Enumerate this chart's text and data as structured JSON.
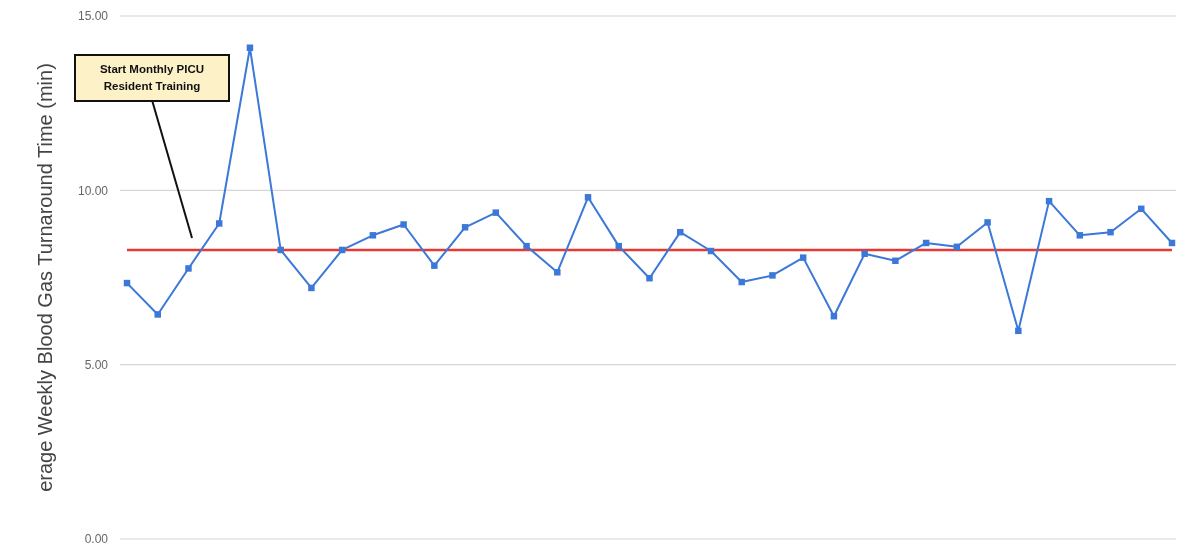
{
  "chart_data": {
    "type": "line",
    "ylabel": "erage Weekly Blood Gas Turnaround Time (min)",
    "categories": [
      null,
      null,
      null,
      null,
      null,
      null,
      null,
      null,
      null,
      null,
      null,
      null,
      null,
      null,
      null,
      null,
      null,
      null,
      null,
      null,
      null,
      null,
      null,
      null,
      null,
      null,
      null,
      null,
      null,
      null,
      null,
      null,
      null,
      null,
      null
    ],
    "series": [
      {
        "color": "#3c78d8",
        "values": [
          7.34,
          6.44,
          7.76,
          9.05,
          14.09,
          8.29,
          7.2,
          8.29,
          8.71,
          9.02,
          7.84,
          8.94,
          9.36,
          8.4,
          7.65,
          9.8,
          8.4,
          7.48,
          8.8,
          8.26,
          7.37,
          7.56,
          8.07,
          6.39,
          8.18,
          7.98,
          8.49,
          8.38,
          9.08,
          5.97,
          9.69,
          8.71,
          8.8,
          9.47,
          8.49
        ]
      }
    ],
    "ylim": [
      0,
      15
    ],
    "yticks": [
      {
        "value": 0,
        "label": "0.00"
      },
      {
        "value": 5,
        "label": "5.00"
      },
      {
        "value": 10,
        "label": "10.00"
      },
      {
        "value": 15,
        "label": "15.00"
      }
    ],
    "ref_lines": [
      {
        "axis": "y",
        "value": 8.29,
        "color": "#e53935"
      }
    ],
    "annotations": [
      "Start Monthly PICU Resident Training"
    ],
    "grid": "y",
    "marker": "square",
    "line_style": "solid"
  }
}
